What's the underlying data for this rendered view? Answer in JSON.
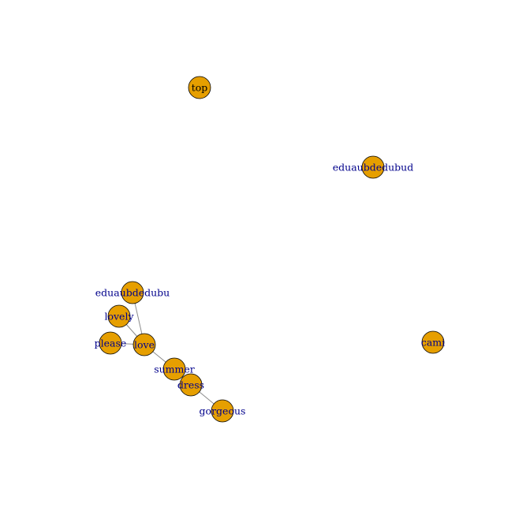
{
  "colors": {
    "node_fill": "#E69F00",
    "node_stroke": "#000000",
    "edge": "#8c8c8c",
    "black_label": "#000000",
    "blue_label": "#00008B"
  },
  "nodes": [
    {
      "id": "top",
      "label": "top",
      "label_color": "black"
    },
    {
      "id": "eduaubdedubud",
      "label": "eduaubdedubud",
      "label_color": "blue"
    },
    {
      "id": "eduaubdedubu",
      "label": "eduaubdedubu",
      "label_color": "blue"
    },
    {
      "id": "lovely",
      "label": "lovely",
      "label_color": "blue"
    },
    {
      "id": "please",
      "label": "please",
      "label_color": "blue"
    },
    {
      "id": "love",
      "label": "love",
      "label_color": "blue"
    },
    {
      "id": "summer",
      "label": "summer",
      "label_color": "blue"
    },
    {
      "id": "dress",
      "label": "dress",
      "label_color": "blue"
    },
    {
      "id": "gorgeous",
      "label": "gorgeous",
      "label_color": "blue"
    },
    {
      "id": "cami",
      "label": "cami",
      "label_color": "blue"
    }
  ],
  "edges": [
    [
      "eduaubdedubu",
      "love"
    ],
    [
      "lovely",
      "love"
    ],
    [
      "please",
      "love"
    ],
    [
      "love",
      "summer"
    ],
    [
      "summer",
      "dress"
    ],
    [
      "dress",
      "gorgeous"
    ]
  ]
}
